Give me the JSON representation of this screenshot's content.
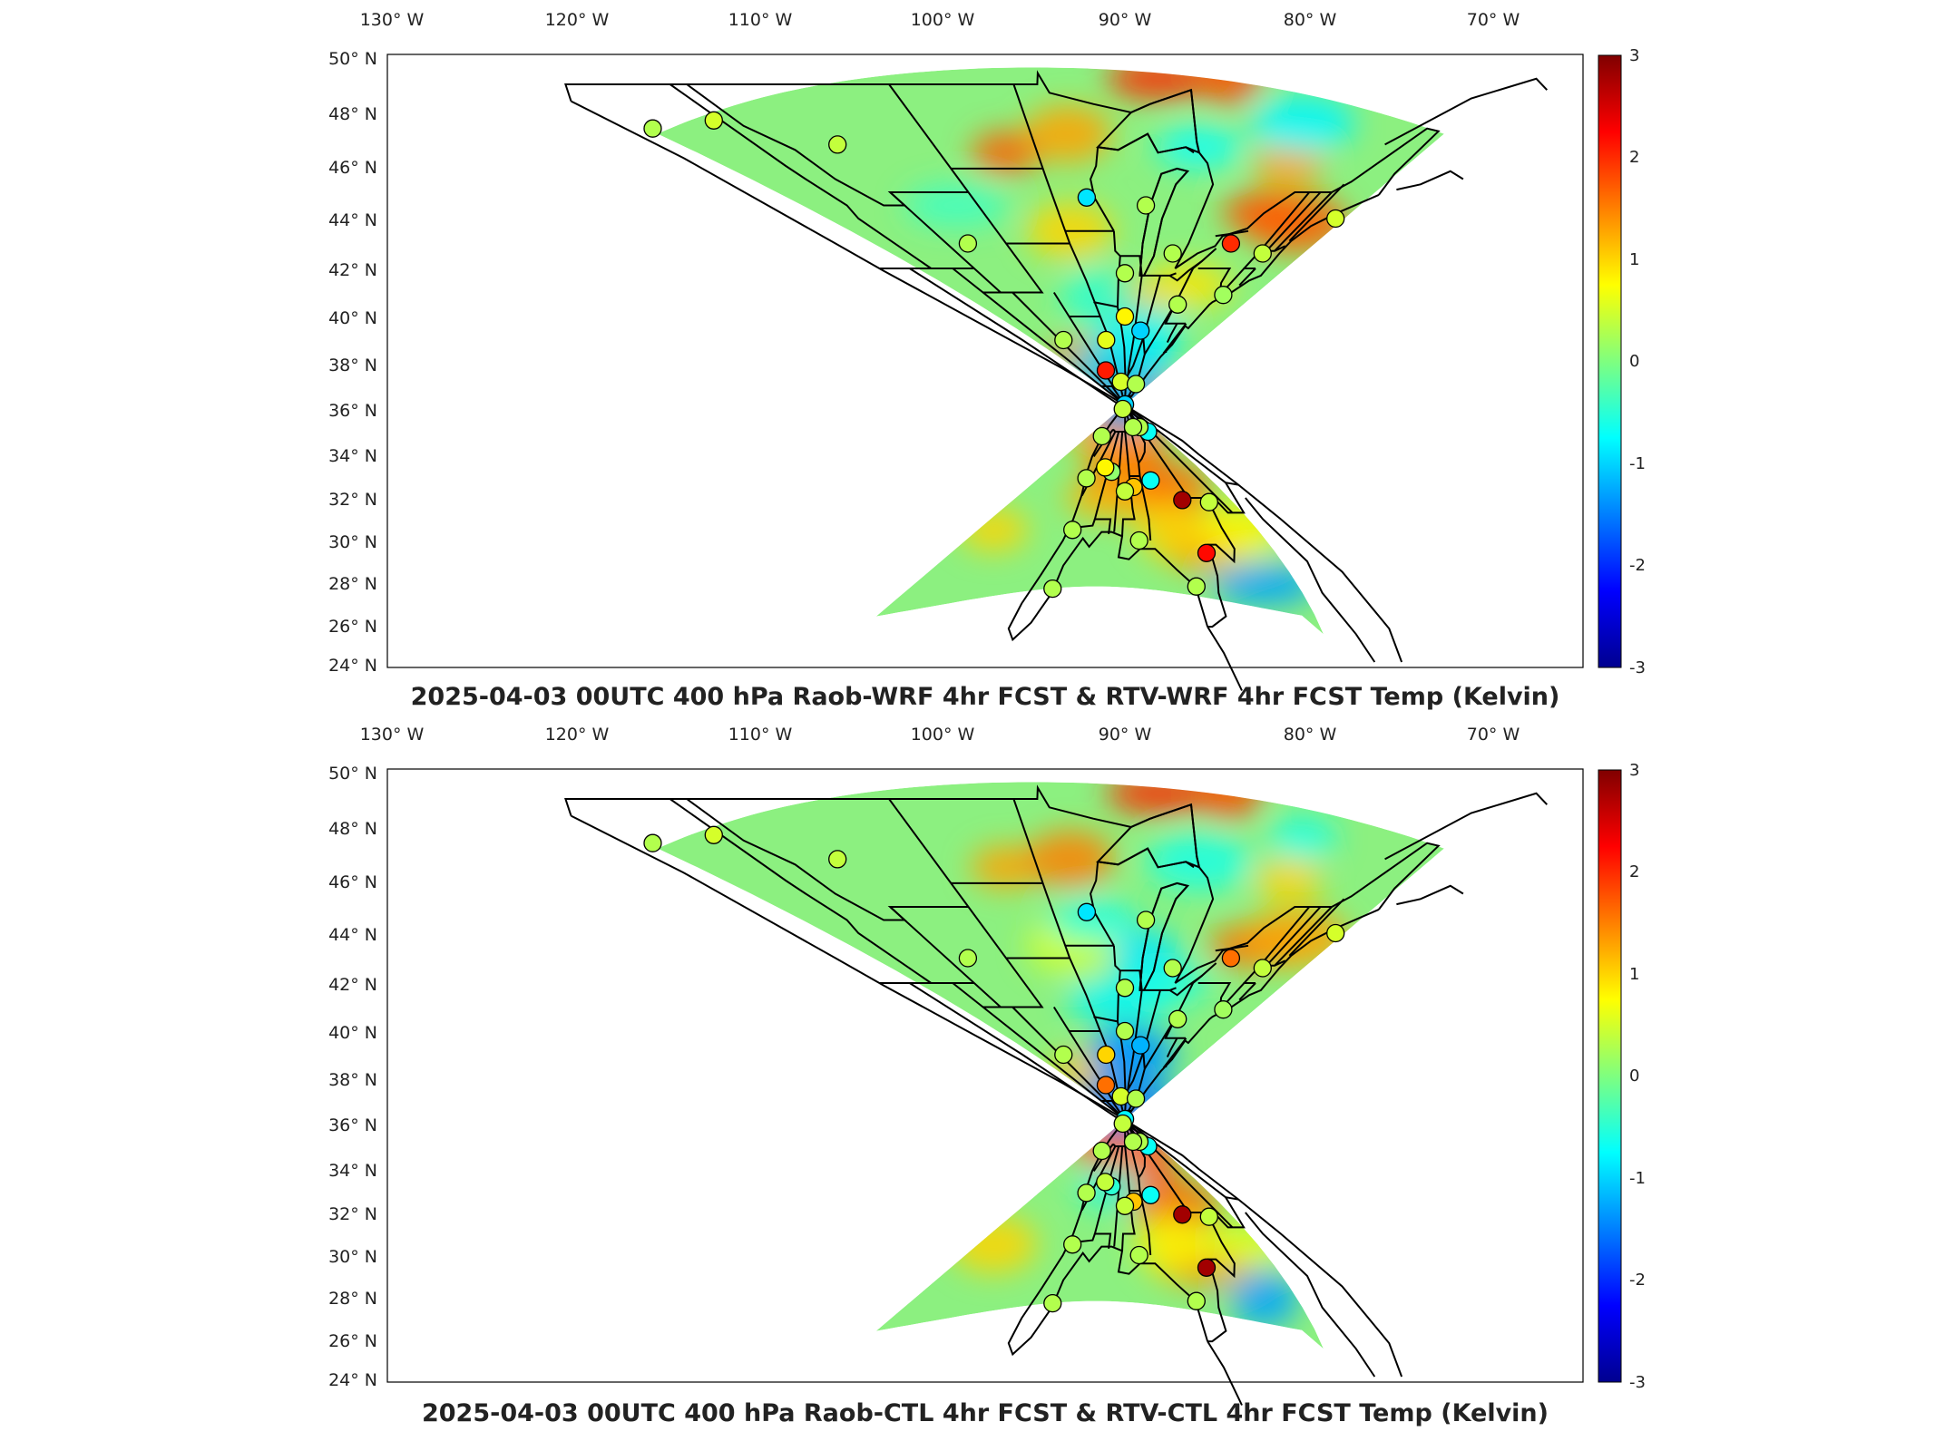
{
  "panels": [
    {
      "title": "2025-04-03 00UTC 400 hPa Raob-WRF 4hr FCST & RTV-WRF 4hr FCST Temp (Kelvin)",
      "lon_labels": [
        "130° W",
        "120° W",
        "110° W",
        "100° W",
        "90° W",
        "80° W",
        "70° W"
      ],
      "lat_labels": [
        "50° N",
        "48° N",
        "46° N",
        "44° N",
        "42° N",
        "40° N",
        "38° N",
        "36° N",
        "34° N",
        "32° N",
        "30° N",
        "28° N",
        "26° N",
        "24° N"
      ],
      "colorbar": {
        "ticks": [
          "3",
          "2",
          "1",
          "0",
          "-1",
          "-2",
          "-3"
        ],
        "min": -3,
        "max": 3
      },
      "stations": [
        {
          "lon": -122.5,
          "lat": 47.4,
          "v": 0.3
        },
        {
          "lon": -117.5,
          "lat": 47.7,
          "v": 0.5
        },
        {
          "lon": -111.0,
          "lat": 46.8,
          "v": 0.4
        },
        {
          "lon": -93.5,
          "lat": 44.8,
          "v": -0.9
        },
        {
          "lon": -108.5,
          "lat": 43.0,
          "v": 0.3
        },
        {
          "lon": -88.0,
          "lat": 44.5,
          "v": 0.3
        },
        {
          "lon": -84.0,
          "lat": 42.6,
          "v": 0.3
        },
        {
          "lon": -77.5,
          "lat": 43.0,
          "v": 2.0
        },
        {
          "lon": -72.7,
          "lat": 42.6,
          "v": 0.4
        },
        {
          "lon": -68.5,
          "lat": 44.0,
          "v": 0.5
        },
        {
          "lon": -90.0,
          "lat": 41.8,
          "v": 0.3
        },
        {
          "lon": -90.0,
          "lat": 40.0,
          "v": 0.8
        },
        {
          "lon": -86.0,
          "lat": 39.4,
          "v": -1.0
        },
        {
          "lon": -80.0,
          "lat": 40.5,
          "v": 0.3
        },
        {
          "lon": -73.0,
          "lat": 40.9,
          "v": 0.2
        },
        {
          "lon": -108.0,
          "lat": 39.0,
          "v": 0.3
        },
        {
          "lon": -95.5,
          "lat": 39.0,
          "v": 0.6
        },
        {
          "lon": -100.5,
          "lat": 37.7,
          "v": 2.1
        },
        {
          "lon": -93.2,
          "lat": 37.2,
          "v": 0.5
        },
        {
          "lon": -87.5,
          "lat": 36.2,
          "v": -1.0
        },
        {
          "lon": -80.0,
          "lat": 37.1,
          "v": 0.3
        },
        {
          "lon": -80.0,
          "lat": 36.0,
          "v": 0.4
        },
        {
          "lon": -76.0,
          "lat": 34.8,
          "v": 0.3
        },
        {
          "lon": -106.5,
          "lat": 35.0,
          "v": -0.7
        },
        {
          "lon": -102.5,
          "lat": 35.2,
          "v": 0.3
        },
        {
          "lon": -97.0,
          "lat": 35.2,
          "v": 0.3
        },
        {
          "lon": -96.5,
          "lat": 32.8,
          "v": -0.7
        },
        {
          "lon": -92.0,
          "lat": 32.5,
          "v": 1.1
        },
        {
          "lon": -90.0,
          "lat": 32.3,
          "v": 0.4
        },
        {
          "lon": -86.2,
          "lat": 33.2,
          "v": 0.1
        },
        {
          "lon": -84.0,
          "lat": 33.4,
          "v": 0.8
        },
        {
          "lon": -80.0,
          "lat": 32.9,
          "v": 0.3
        },
        {
          "lon": -106.5,
          "lat": 31.8,
          "v": 0.4
        },
        {
          "lon": -101.5,
          "lat": 31.9,
          "v": 2.8
        },
        {
          "lon": -100.5,
          "lat": 29.4,
          "v": 2.2
        },
        {
          "lon": -97.5,
          "lat": 27.8,
          "v": 0.3
        },
        {
          "lon": -92.0,
          "lat": 30.0,
          "v": 0.3
        },
        {
          "lon": -82.0,
          "lat": 30.5,
          "v": 0.3
        },
        {
          "lon": -82.5,
          "lat": 27.7,
          "v": 0.3
        }
      ],
      "blobs": [
        {
          "lon": -99,
          "lat": 46.5,
          "v": 1.7
        },
        {
          "lon": -94,
          "lat": 47.2,
          "v": 1.3
        },
        {
          "lon": -88,
          "lat": 49.2,
          "v": 2.0
        },
        {
          "lon": -84,
          "lat": 49.3,
          "v": 1.8
        },
        {
          "lon": -76,
          "lat": 44.2,
          "v": 1.8
        },
        {
          "lon": -72,
          "lat": 43.8,
          "v": 1.7
        },
        {
          "lon": -77,
          "lat": 46.0,
          "v": 1.3
        },
        {
          "lon": -96,
          "lat": 43.5,
          "v": 1.0
        },
        {
          "lon": -99.5,
          "lat": 38.3,
          "v": 1.5
        },
        {
          "lon": -93.8,
          "lat": 34.8,
          "v": 2.0
        },
        {
          "lon": -91.5,
          "lat": 33.0,
          "v": 1.8
        },
        {
          "lon": -87.8,
          "lat": 36.5,
          "v": 1.8
        },
        {
          "lon": -89.5,
          "lat": 40.5,
          "v": 1.2
        },
        {
          "lon": -84.5,
          "lat": 34.8,
          "v": 1.3
        },
        {
          "lon": -88.5,
          "lat": 32.0,
          "v": 1.2
        },
        {
          "lon": -101.2,
          "lat": 32.3,
          "v": 1.6
        },
        {
          "lon": -100.3,
          "lat": 29.6,
          "v": 1.4
        },
        {
          "lon": -92,
          "lat": 37.8,
          "v": -1.0
        },
        {
          "lon": -90.6,
          "lat": 36.0,
          "v": -1.3
        },
        {
          "lon": -86.5,
          "lat": 39.3,
          "v": -0.8
        },
        {
          "lon": -104.8,
          "lat": 27.9,
          "v": -1.3
        },
        {
          "lon": -95,
          "lat": 40.8,
          "v": -0.5
        },
        {
          "lon": -84.5,
          "lat": 46.7,
          "v": -0.7
        },
        {
          "lon": -78,
          "lat": 47.6,
          "v": -0.8
        },
        {
          "lon": -70,
          "lat": 30.5,
          "v": 1.0
        },
        {
          "lon": -107.5,
          "lat": 30.5,
          "v": 0.8
        },
        {
          "lon": -106,
          "lat": 44.5,
          "v": -0.4
        },
        {
          "lon": -97,
          "lat": 30.5,
          "v": 1.0
        },
        {
          "lon": -80,
          "lat": 41.3,
          "v": 0.9
        }
      ]
    },
    {
      "title": "2025-04-03 00UTC 400 hPa Raob-CTL 4hr FCST & RTV-CTL 4hr FCST Temp (Kelvin)",
      "lon_labels": [
        "130° W",
        "120° W",
        "110° W",
        "100° W",
        "90° W",
        "80° W",
        "70° W"
      ],
      "lat_labels": [
        "50° N",
        "48° N",
        "46° N",
        "44° N",
        "42° N",
        "40° N",
        "38° N",
        "36° N",
        "34° N",
        "32° N",
        "30° N",
        "28° N",
        "26° N",
        "24° N"
      ],
      "colorbar": {
        "ticks": [
          "3",
          "2",
          "1",
          "0",
          "-1",
          "-2",
          "-3"
        ],
        "min": -3,
        "max": 3
      },
      "stations": [
        {
          "lon": -122.5,
          "lat": 47.4,
          "v": 0.3
        },
        {
          "lon": -117.5,
          "lat": 47.7,
          "v": 0.5
        },
        {
          "lon": -111.0,
          "lat": 46.8,
          "v": 0.4
        },
        {
          "lon": -93.5,
          "lat": 44.8,
          "v": -0.9
        },
        {
          "lon": -108.5,
          "lat": 43.0,
          "v": 0.3
        },
        {
          "lon": -88.0,
          "lat": 44.5,
          "v": 0.3
        },
        {
          "lon": -84.0,
          "lat": 42.6,
          "v": 0.3
        },
        {
          "lon": -77.5,
          "lat": 43.0,
          "v": 1.6
        },
        {
          "lon": -72.7,
          "lat": 42.6,
          "v": 0.4
        },
        {
          "lon": -68.5,
          "lat": 44.0,
          "v": 0.5
        },
        {
          "lon": -90.0,
          "lat": 41.8,
          "v": 0.3
        },
        {
          "lon": -90.0,
          "lat": 40.0,
          "v": 0.3
        },
        {
          "lon": -86.0,
          "lat": 39.4,
          "v": -1.2
        },
        {
          "lon": -80.0,
          "lat": 40.5,
          "v": 0.3
        },
        {
          "lon": -73.0,
          "lat": 40.9,
          "v": 0.2
        },
        {
          "lon": -108.0,
          "lat": 39.0,
          "v": 0.3
        },
        {
          "lon": -95.5,
          "lat": 39.0,
          "v": 1.0
        },
        {
          "lon": -100.5,
          "lat": 37.7,
          "v": 1.6
        },
        {
          "lon": -93.2,
          "lat": 37.2,
          "v": 0.5
        },
        {
          "lon": -87.5,
          "lat": 36.2,
          "v": -0.8
        },
        {
          "lon": -80.0,
          "lat": 37.1,
          "v": 0.3
        },
        {
          "lon": -80.0,
          "lat": 36.0,
          "v": 0.4
        },
        {
          "lon": -76.0,
          "lat": 34.8,
          "v": 0.3
        },
        {
          "lon": -106.5,
          "lat": 35.0,
          "v": -0.7
        },
        {
          "lon": -102.5,
          "lat": 35.2,
          "v": 0.3
        },
        {
          "lon": -97.0,
          "lat": 35.2,
          "v": 0.3
        },
        {
          "lon": -96.5,
          "lat": 32.8,
          "v": -0.7
        },
        {
          "lon": -92.0,
          "lat": 32.5,
          "v": 1.1
        },
        {
          "lon": -90.0,
          "lat": 32.3,
          "v": 0.4
        },
        {
          "lon": -86.2,
          "lat": 33.2,
          "v": -0.5
        },
        {
          "lon": -84.0,
          "lat": 33.4,
          "v": 0.4
        },
        {
          "lon": -80.0,
          "lat": 32.9,
          "v": 0.3
        },
        {
          "lon": -106.5,
          "lat": 31.8,
          "v": 0.4
        },
        {
          "lon": -101.5,
          "lat": 31.9,
          "v": 2.8
        },
        {
          "lon": -100.5,
          "lat": 29.4,
          "v": 2.8
        },
        {
          "lon": -97.5,
          "lat": 27.8,
          "v": 0.3
        },
        {
          "lon": -92.0,
          "lat": 30.0,
          "v": 0.3
        },
        {
          "lon": -82.0,
          "lat": 30.5,
          "v": 0.3
        },
        {
          "lon": -82.5,
          "lat": 27.7,
          "v": 0.3
        }
      ],
      "blobs": [
        {
          "lon": -99,
          "lat": 46.5,
          "v": 1.3
        },
        {
          "lon": -94,
          "lat": 46.8,
          "v": 1.5
        },
        {
          "lon": -88,
          "lat": 49.2,
          "v": 2.0
        },
        {
          "lon": -84,
          "lat": 49.3,
          "v": 1.8
        },
        {
          "lon": -76,
          "lat": 43.5,
          "v": 1.6
        },
        {
          "lon": -72,
          "lat": 43.8,
          "v": 1.3
        },
        {
          "lon": -77,
          "lat": 46.0,
          "v": 1.0
        },
        {
          "lon": -96,
          "lat": 43.5,
          "v": 0.5
        },
        {
          "lon": -99.5,
          "lat": 38.3,
          "v": 1.1
        },
        {
          "lon": -94.8,
          "lat": 33.8,
          "v": 2.0
        },
        {
          "lon": -91.3,
          "lat": 34.3,
          "v": 1.8
        },
        {
          "lon": -88.2,
          "lat": 35.3,
          "v": 1.6
        },
        {
          "lon": -90.5,
          "lat": 39.2,
          "v": -1.8
        },
        {
          "lon": -87.5,
          "lat": 39.0,
          "v": -1.3
        },
        {
          "lon": -91,
          "lat": 41.3,
          "v": -0.8
        },
        {
          "lon": -87.5,
          "lat": 43.0,
          "v": -0.9
        },
        {
          "lon": -84.5,
          "lat": 42.0,
          "v": -0.6
        },
        {
          "lon": -88.5,
          "lat": 36.8,
          "v": -1.5
        },
        {
          "lon": -86.2,
          "lat": 33.2,
          "v": -0.6
        },
        {
          "lon": -101.2,
          "lat": 32.3,
          "v": 1.6
        },
        {
          "lon": -100.3,
          "lat": 29.6,
          "v": 1.5
        },
        {
          "lon": -104.8,
          "lat": 27.9,
          "v": -1.3
        },
        {
          "lon": -93,
          "lat": 44.5,
          "v": -0.6
        },
        {
          "lon": -84.5,
          "lat": 46.7,
          "v": -0.6
        },
        {
          "lon": -78,
          "lat": 47.6,
          "v": -0.6
        },
        {
          "lon": -70,
          "lat": 30.5,
          "v": 1.0
        },
        {
          "lon": -107.5,
          "lat": 30.5,
          "v": 0.6
        },
        {
          "lon": -97,
          "lat": 30.5,
          "v": 0.8
        }
      ]
    }
  ]
}
